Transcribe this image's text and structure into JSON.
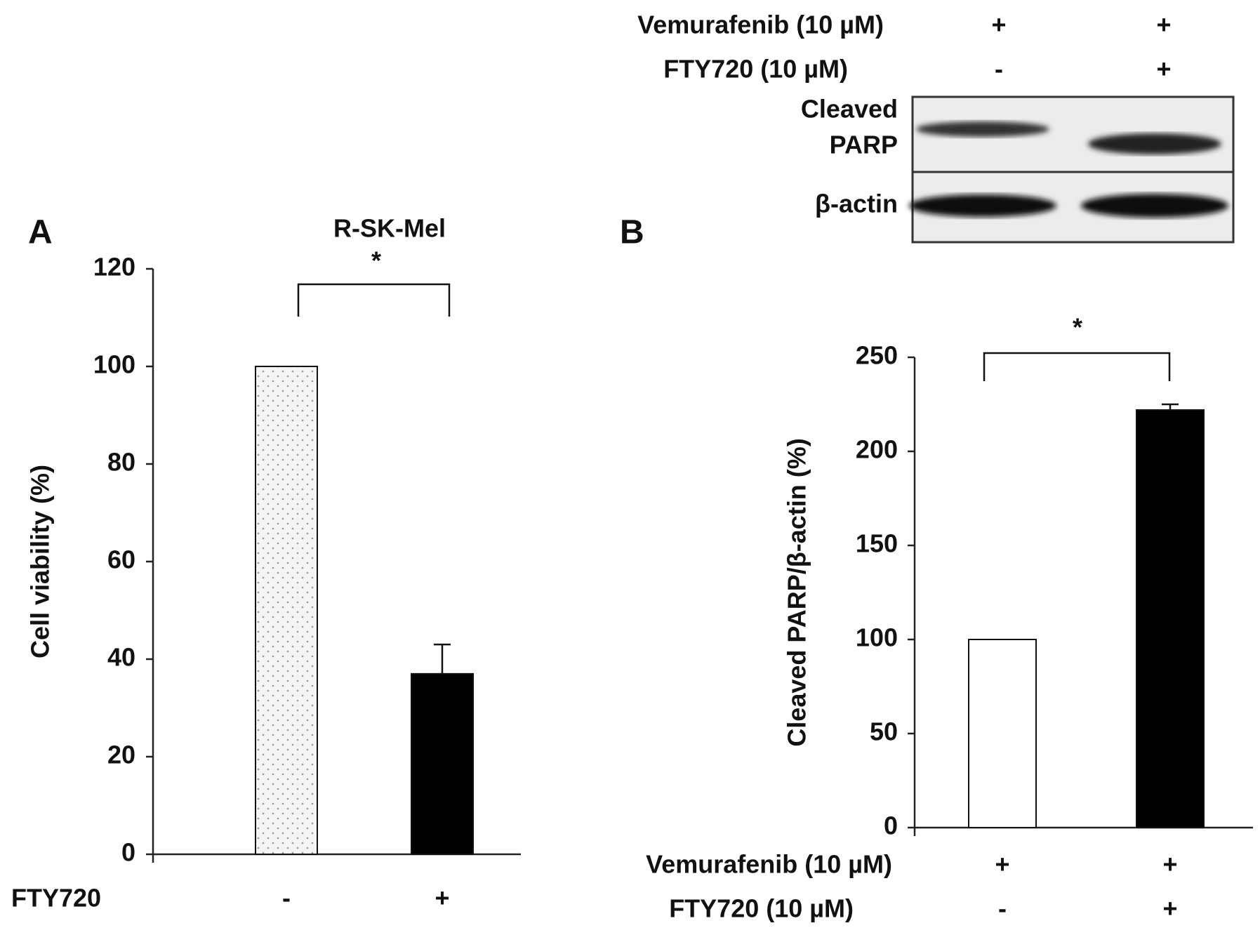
{
  "chart_data": [
    {
      "type": "bar",
      "panel_label": "A",
      "title": "R-SK-Mel",
      "ylabel": "Cell viability (%)",
      "x_rows": [
        {
          "label": "FTY720",
          "values": [
            "-",
            "+"
          ]
        }
      ],
      "values": [
        100,
        37
      ],
      "errors": [
        null,
        6
      ],
      "colors": [
        "#f4f4f4",
        "#000000"
      ],
      "patterns": [
        "dots",
        "solid"
      ],
      "ylim": [
        0,
        120
      ],
      "yticks": [
        0,
        20,
        40,
        60,
        80,
        100,
        120
      ],
      "significance": "*"
    },
    {
      "type": "bar",
      "panel_label": "B",
      "ylabel": "Cleaved PARP/β-actin (%)",
      "x_rows": [
        {
          "label": "Vemurafenib (10 µM)",
          "values": [
            "+",
            "+"
          ]
        },
        {
          "label": "FTY720 (10 µM)",
          "values": [
            "-",
            "+"
          ]
        }
      ],
      "values": [
        100,
        222
      ],
      "errors": [
        null,
        3
      ],
      "colors": [
        "#ffffff",
        "#000000"
      ],
      "patterns": [
        "solid",
        "solid"
      ],
      "ylim": [
        0,
        250
      ],
      "yticks": [
        0,
        50,
        100,
        150,
        200,
        250
      ],
      "significance": "*"
    }
  ],
  "blot": {
    "conditions": [
      {
        "label": "Vemurafenib (10 µM)",
        "values": [
          "+",
          "+"
        ]
      },
      {
        "label": "FTY720 (10 µM)",
        "values": [
          "-",
          "+"
        ]
      }
    ],
    "bands": [
      [
        "Cleaved",
        "PARP"
      ],
      [
        "β-actin"
      ]
    ]
  }
}
